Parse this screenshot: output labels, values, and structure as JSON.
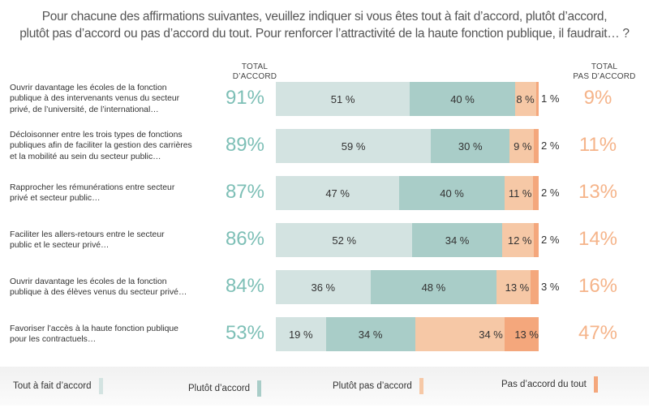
{
  "chart_data": {
    "type": "bar",
    "orientation": "horizontal-stacked-100",
    "title": "Pour chacune des affirmations suivantes, veuillez indiquer si vous êtes tout à fait d’accord, plutôt d’accord, plutôt pas d’accord ou pas d’accord du tout. Pour renforcer l’attractivité de la haute fonction publique, il faudrait… ?",
    "title_lines": [
      "Pour chacune des affirmations suivantes, veuillez indiquer si vous êtes tout à fait d’accord, plutôt d’accord,",
      "plutôt pas d’accord ou pas d’accord du tout. Pour renforcer l’attractivité de la haute fonction publique, il faudrait… ?"
    ],
    "column_headers": {
      "total_agree": [
        "TOTAL",
        "D’ACCORD"
      ],
      "total_disagree": [
        "TOTAL",
        "PAS D’ACCORD"
      ]
    },
    "categories": [
      "Ouvrir davantage les écoles de la fonction publique à des intervenants venus du secteur privé, de l’université, de l’international…",
      "Décloisonner entre les trois types de fonctions publiques afin de faciliter la gestion des carrières et la mobilité au sein du secteur public…",
      "Rapprocher les rémunérations entre secteur privé et secteur public…",
      "Faciliter les allers-retours entre le secteur public et le secteur privé…",
      "Ouvrir davantage les écoles de la fonction publique à des élèves venus du secteur privé…",
      "Favoriser l’accès à la haute fonction publique pour les contractuels…"
    ],
    "category_lines": [
      [
        "Ouvrir davantage les écoles de la fonction",
        "publique à des intervenants venus du secteur",
        "privé, de l’université, de l’international…"
      ],
      [
        "Décloisonner entre les trois types de fonctions",
        "publiques afin de faciliter la gestion des carrières",
        "et la mobilité au sein du secteur public…"
      ],
      [
        "Rapprocher les rémunérations entre secteur",
        "privé et secteur public…"
      ],
      [
        "Faciliter les allers-retours entre le secteur",
        "public et le secteur privé…"
      ],
      [
        "Ouvrir davantage les écoles de la fonction",
        "publique à des élèves venus du secteur privé…"
      ],
      [
        "Favoriser l’accès à la haute fonction publique",
        "pour les contractuels…"
      ]
    ],
    "series": [
      {
        "name": "Tout à fait d’accord",
        "color": "#d3e3e1",
        "values": [
          51,
          59,
          47,
          52,
          36,
          19
        ]
      },
      {
        "name": "Plutôt d’accord",
        "color": "#a9cdc8",
        "values": [
          40,
          30,
          40,
          34,
          48,
          34
        ]
      },
      {
        "name": "Plutôt pas d’accord",
        "color": "#f6c8a6",
        "values": [
          8,
          9,
          11,
          12,
          13,
          34
        ]
      },
      {
        "name": "Pas d’accord du tout",
        "color": "#f4a77c",
        "values": [
          1,
          2,
          2,
          2,
          3,
          13
        ]
      }
    ],
    "total_agree": [
      91,
      89,
      87,
      86,
      84,
      53
    ],
    "total_disagree": [
      9,
      11,
      13,
      14,
      16,
      47
    ],
    "total_agree_labels": [
      "91%",
      "89%",
      "87%",
      "86%",
      "84%",
      "53%"
    ],
    "total_disagree_labels": [
      "9%",
      "11%",
      "13%",
      "14%",
      "16%",
      "47%"
    ],
    "value_suffix": " %",
    "xlim": [
      0,
      100
    ],
    "legend_position": "bottom",
    "grid": false,
    "colors": {
      "total_agree_text": "#7dbfb6",
      "total_disagree_text": "#f5b48a"
    }
  }
}
